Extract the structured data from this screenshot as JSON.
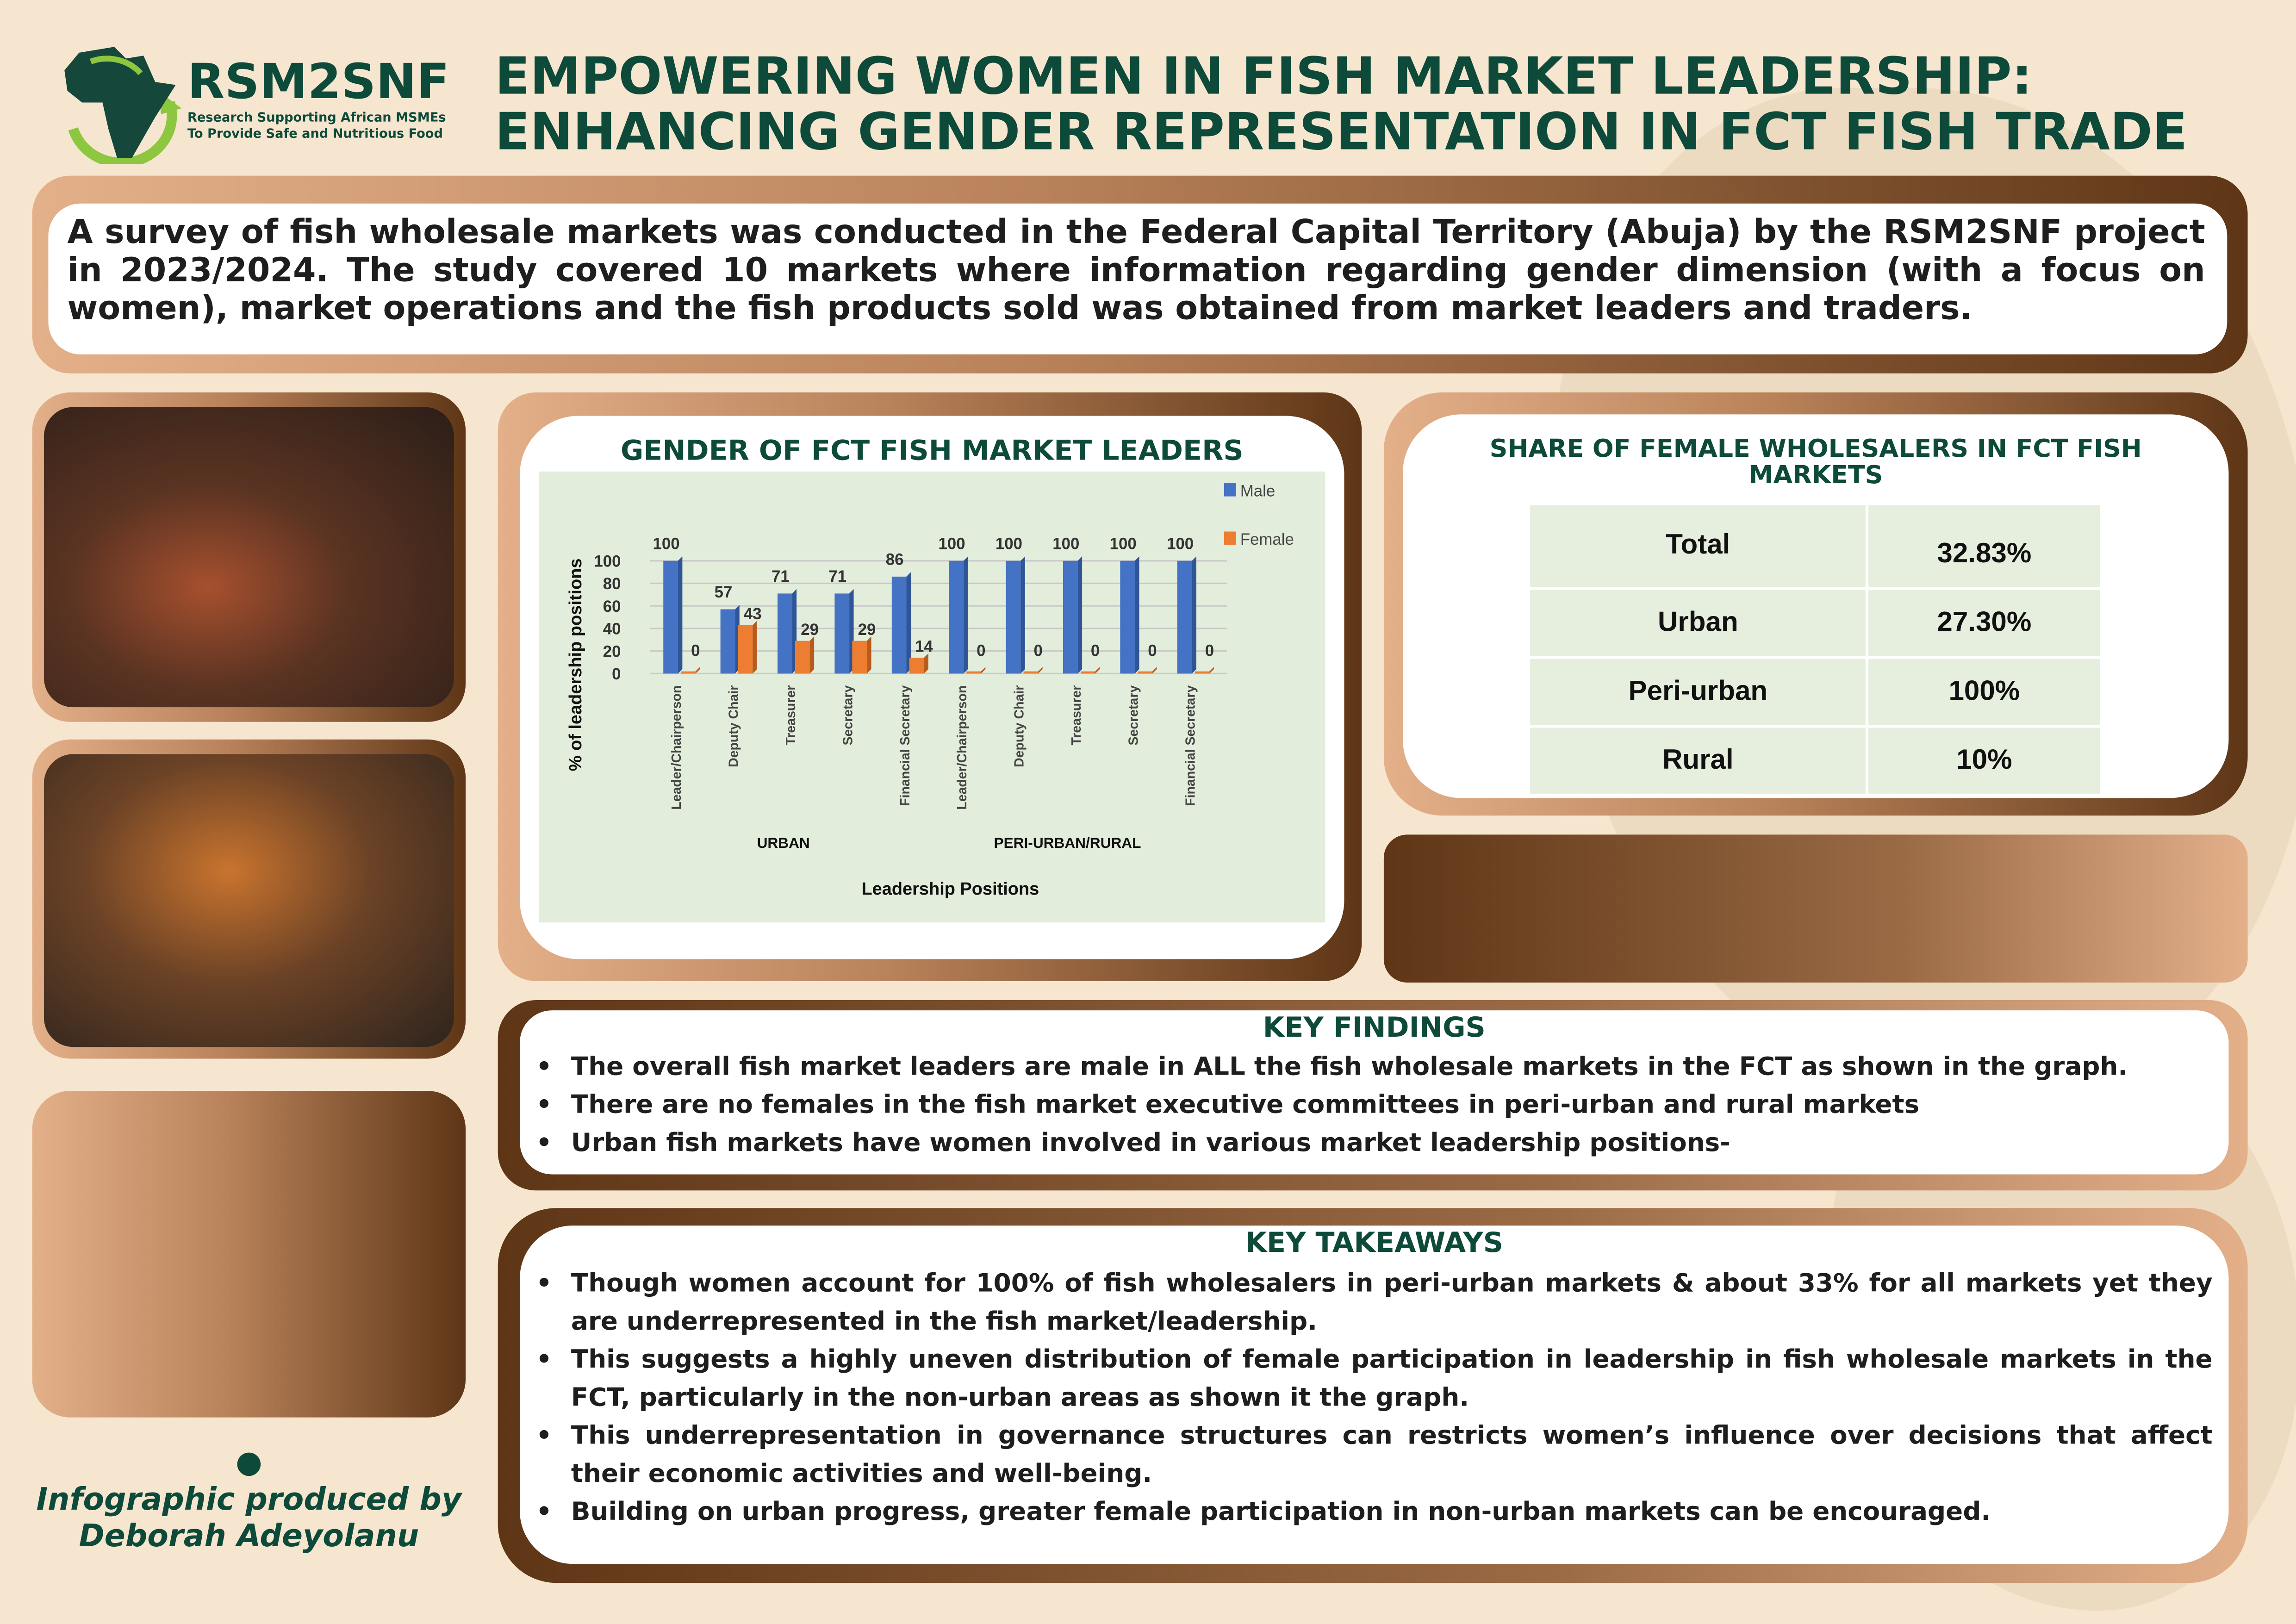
{
  "logo": {
    "name": "RSM2SNF",
    "tagline_1": "Research Supporting African MSMEs",
    "tagline_2": "To Provide Safe and Nutritious Food"
  },
  "header": {
    "title_line_1": "EMPOWERING WOMEN IN FISH MARKET LEADERSHIP:",
    "title_line_2": "ENHANCING GENDER REPRESENTATION IN FCT FISH TRADE"
  },
  "intro": "A survey of fish wholesale markets was conducted in the Federal Capital Territory (Abuja)  by the RSM2SNF project in 2023/2024. The study covered 10 markets where information regarding gender dimension (with a focus on women), market operations and the fish products sold was obtained from market leaders and traders.",
  "credit": {
    "line_1": "Infographic produced by",
    "line_2": "Deborah Adeyolanu"
  },
  "colors": {
    "male": "#4472c4",
    "female": "#ed7d31",
    "dark_green": "#0d4a3a",
    "brown": "#5e3616"
  },
  "chart_data": {
    "type": "bar",
    "title": "GENDER OF FCT FISH MARKET LEADERS",
    "xlabel": "Leadership Positions",
    "ylabel": "% of leadership positions",
    "ylim": [
      0,
      100
    ],
    "yticks": [
      "0",
      "20",
      "40",
      "60",
      "80",
      "100"
    ],
    "categories": [
      "Leader/Chairperson",
      "Deputy Chair",
      "Treasurer",
      "Secretary",
      "Financial Secretary",
      "Leader/Chairperson",
      "Deputy Chair",
      "Treasurer",
      "Secretary",
      "Financial Secretary"
    ],
    "groups": [
      {
        "label": "URBAN"
      },
      {
        "label": "PERI-URBAN/RURAL"
      }
    ],
    "series": [
      {
        "name": "Male",
        "values": [
          100,
          57,
          71,
          71,
          86,
          100,
          100,
          100,
          100,
          100
        ]
      },
      {
        "name": "Female",
        "values": [
          0,
          43,
          29,
          29,
          14,
          0,
          0,
          0,
          0,
          0
        ]
      }
    ],
    "grid": true,
    "legend": "right"
  },
  "share": {
    "title": "SHARE OF FEMALE WHOLESALERS IN FCT FISH MARKETS",
    "rows": [
      {
        "label": "Total",
        "value": "32.83%"
      },
      {
        "label": "Urban",
        "value": "27.30%"
      },
      {
        "label": "Peri-urban",
        "value": "100%"
      },
      {
        "label": "Rural",
        "value": "10%"
      }
    ]
  },
  "findings": {
    "title": "KEY FINDINGS",
    "items": [
      "The overall fish market leaders are male in ALL  the fish wholesale markets in the FCT as shown in the graph.",
      "There are no females in the fish market executive committees in peri-urban and rural markets",
      "Urban fish markets have women involved in various market leadership positions-"
    ]
  },
  "takeaways": {
    "title": "KEY TAKEAWAYS",
    "items": [
      "Though women account for 100% of fish wholesalers in peri-urban markets & about 33% for all markets yet they are underrepresented in the fish market/leadership.",
      "This suggests a highly uneven distribution of female participation in leadership in fish wholesale markets in the FCT, particularly in the non-urban areas as shown it the graph.",
      "This underrepresentation in governance structures can restricts women’s influence over decisions that affect their economic activities and well-being.",
      "Building on urban progress, greater female participation in non-urban markets can be encouraged."
    ]
  }
}
